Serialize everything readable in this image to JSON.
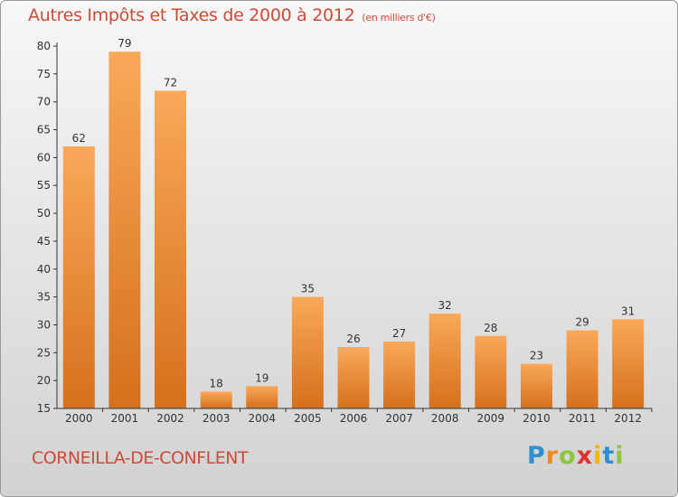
{
  "title": "Autres Impôts et Taxes de 2000 à 2012",
  "title_unit": "(en milliers d'€)",
  "commune": "CORNEILLA-DE-CONFLENT",
  "brand": {
    "letters": [
      "P",
      "r",
      "o",
      "x",
      "i",
      "t",
      "i"
    ],
    "colors": [
      "#2f8fd0",
      "#f08a1c",
      "#8cc63f",
      "#e0312f",
      "#f2b705",
      "#2f8fd0",
      "#8cc63f"
    ]
  },
  "colors": {
    "title": "#cc4b37",
    "bar_light": "#f7a553",
    "bar_dark": "#d8731f",
    "axis": "#333333"
  },
  "chart_data": {
    "type": "bar",
    "title": "Autres Impôts et Taxes de 2000 à 2012",
    "ylabel": "(en milliers d'€)",
    "xlabel": "",
    "categories": [
      "2000",
      "2001",
      "2002",
      "2003",
      "2004",
      "2005",
      "2006",
      "2007",
      "2008",
      "2009",
      "2010",
      "2011",
      "2012"
    ],
    "values": [
      62,
      79,
      72,
      18,
      19,
      35,
      26,
      27,
      32,
      28,
      23,
      29,
      31
    ],
    "ylim": [
      15,
      80
    ],
    "yticks": [
      15,
      20,
      25,
      30,
      35,
      40,
      45,
      50,
      55,
      60,
      65,
      70,
      75,
      80
    ],
    "grid": false
  }
}
